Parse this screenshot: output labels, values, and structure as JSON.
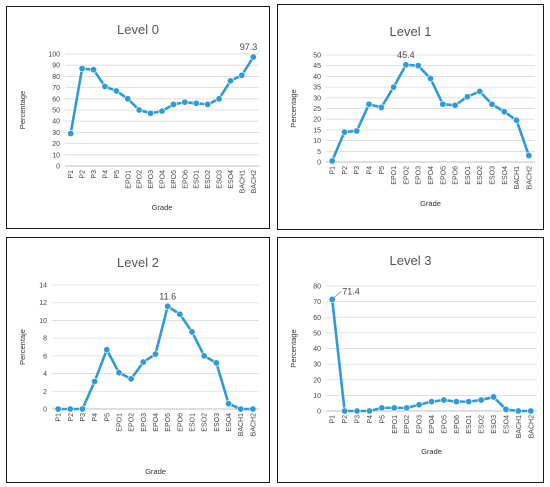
{
  "styles": {
    "line_color": "#2E9BD6",
    "grid_color": "#D9D9D9",
    "axis_color": "#BFBFBF",
    "label_color": "#444444"
  },
  "chart_data": [
    {
      "type": "line",
      "title": "Level 0",
      "xlabel": "Grade",
      "ylabel": "Percentage",
      "categories": [
        "P1",
        "P2",
        "P3",
        "P4",
        "P5",
        "EPO1",
        "EPO2",
        "EPO3",
        "EPO4",
        "EPO5",
        "EPO6",
        "ESO1",
        "ESO2",
        "ESO3",
        "ESO4",
        "BACH1",
        "BACH2"
      ],
      "values": [
        29,
        87,
        86,
        71,
        67,
        60,
        50,
        47,
        49,
        55,
        57,
        56,
        55,
        60,
        76,
        81,
        97.3
      ],
      "ylim": [
        0,
        100
      ],
      "yticks": [
        0,
        10,
        20,
        30,
        40,
        50,
        60,
        70,
        80,
        90,
        100
      ],
      "data_label": {
        "index": 16,
        "text": "97.3"
      },
      "grid": true
    },
    {
      "type": "line",
      "title": "Level 1",
      "xlabel": "Grade",
      "ylabel": "Percentage",
      "categories": [
        "P1",
        "P2",
        "P3",
        "P4",
        "P5",
        "EPO1",
        "EPO2",
        "EPO3",
        "EPO4",
        "EPO5",
        "EPO6",
        "ESO1",
        "ESO2",
        "ESO3",
        "ESO4",
        "BACH1",
        "BACH2"
      ],
      "values": [
        0.5,
        14,
        14.5,
        27,
        25.5,
        35,
        45.4,
        45,
        39,
        27,
        26.5,
        30.5,
        33,
        27,
        23.5,
        19.5,
        3
      ],
      "ylim": [
        0,
        50
      ],
      "yticks": [
        0,
        5,
        10,
        15,
        20,
        25,
        30,
        35,
        40,
        45,
        50
      ],
      "data_label": {
        "index": 6,
        "text": "45.4"
      },
      "grid": true
    },
    {
      "type": "line",
      "title": "Level 2",
      "xlabel": "Grade",
      "ylabel": "Percentaje",
      "categories": [
        "P1",
        "P2",
        "P3",
        "P4",
        "P5",
        "EPO1",
        "EPO2",
        "EPO3",
        "EPO4",
        "EPO5",
        "EPO6",
        "ESO1",
        "ESO2",
        "ESO3",
        "ESO4",
        "BACH1",
        "BACH2"
      ],
      "values": [
        0,
        0,
        0,
        3.1,
        6.7,
        4.1,
        3.4,
        5.3,
        6.2,
        11.6,
        10.7,
        8.7,
        6.0,
        5.2,
        0.6,
        0,
        0
      ],
      "ylim": [
        0,
        14
      ],
      "yticks": [
        0,
        2,
        4,
        6,
        8,
        10,
        12,
        14
      ],
      "data_label": {
        "index": 9,
        "text": "11.6"
      },
      "grid": true
    },
    {
      "type": "line",
      "title": "Level 3",
      "xlabel": "Grade",
      "ylabel": "Percentage",
      "categories": [
        "P1",
        "P2",
        "P3",
        "P4",
        "P5",
        "EPO1",
        "EPO2",
        "EPO3",
        "EPO4",
        "EPO5",
        "EPO6",
        "ESO1",
        "ESO2",
        "ESO3",
        "ESO4",
        "BACH1",
        "BACH2"
      ],
      "values": [
        71.4,
        0,
        0,
        0,
        2,
        2,
        2,
        4,
        6,
        7,
        6,
        6,
        7,
        9,
        1,
        0,
        0
      ],
      "ylim": [
        0,
        80
      ],
      "yticks": [
        0,
        10,
        20,
        30,
        40,
        50,
        60,
        70,
        80
      ],
      "data_label": {
        "index": 0,
        "text": "71.4"
      },
      "grid": true
    }
  ]
}
